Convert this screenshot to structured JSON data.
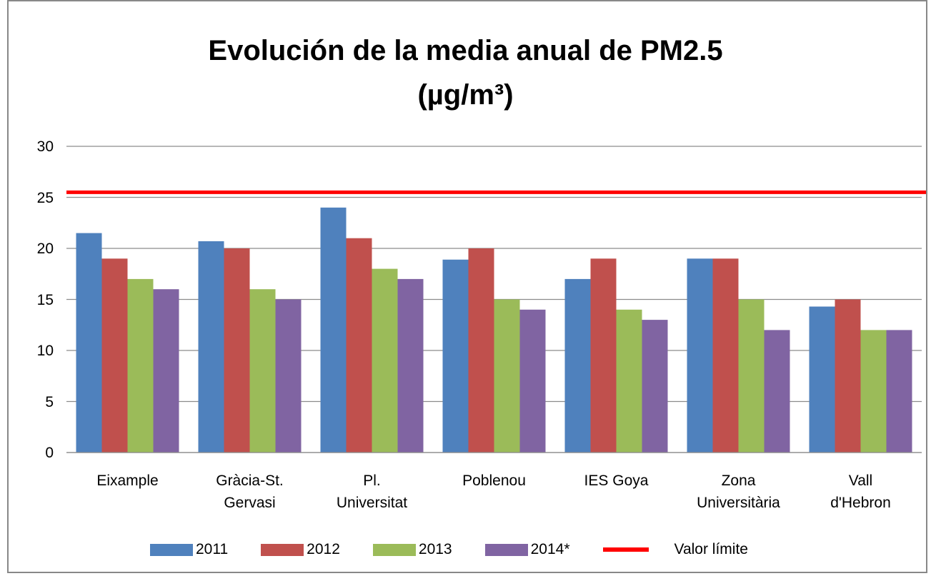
{
  "chart_data": {
    "type": "bar",
    "title": "Evolución de la media anual de PM2.5\n(µg/m³)",
    "categories": [
      "Eixample",
      "Gràcia-St.\nGervasi",
      "Pl.\nUniversitat",
      "Poblenou",
      "IES Goya",
      "Zona\nUniversitària",
      "Vall\nd'Hebron"
    ],
    "series": [
      {
        "name": "2011",
        "color": "#4f81bd",
        "values": [
          21.5,
          20.7,
          24,
          18.9,
          17,
          19,
          14.3
        ]
      },
      {
        "name": "2012",
        "color": "#c0504d",
        "values": [
          19,
          20,
          21,
          20,
          19,
          19,
          15
        ]
      },
      {
        "name": "2013",
        "color": "#9bbb59",
        "values": [
          17,
          16,
          18,
          15,
          14,
          15,
          12
        ]
      },
      {
        "name": "2014*",
        "color": "#8064a2",
        "values": [
          16,
          15,
          17,
          14,
          13,
          12,
          12
        ]
      }
    ],
    "reference_line": {
      "name": "Valor límite",
      "value": 25.5,
      "color": "#ff0000"
    },
    "ylim": [
      0,
      30
    ],
    "yticks": [
      0,
      5,
      10,
      15,
      20,
      25,
      30
    ],
    "grid": true,
    "legend": "bottom"
  }
}
